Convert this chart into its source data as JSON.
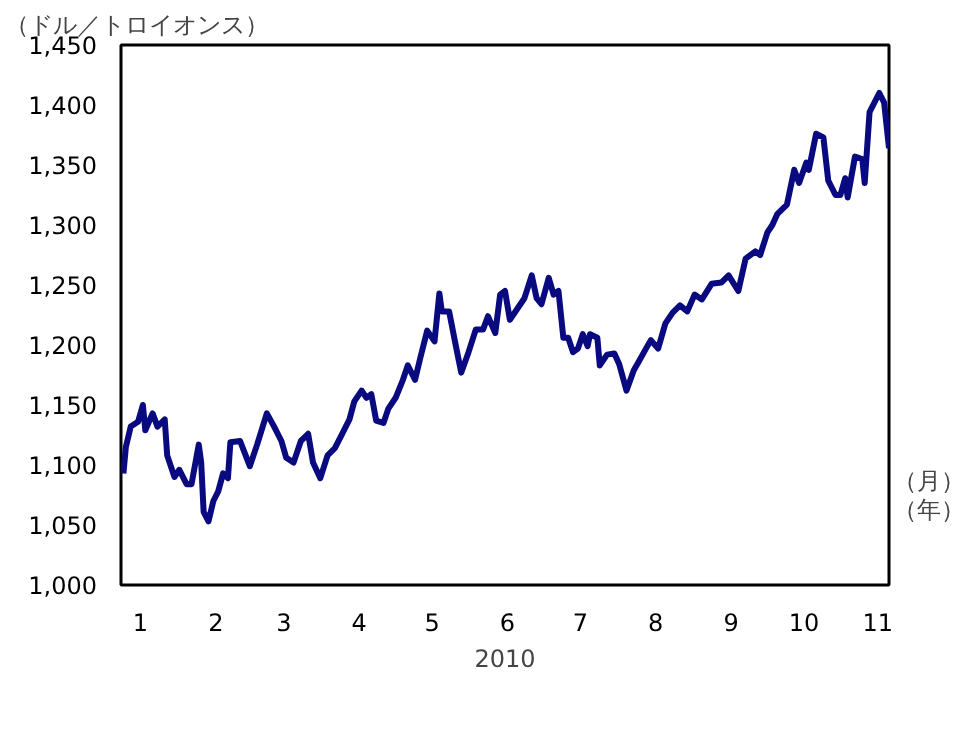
{
  "chart_data": {
    "type": "line",
    "ylabel": "（ドル／トロイオンス）",
    "xlabel": "2010",
    "annotations": [
      "（月）",
      "（年）"
    ],
    "xlim": [
      "2010-01-08",
      "2010-11-20"
    ],
    "xticks": [
      {
        "value": "2010-01-16",
        "label": "1"
      },
      {
        "value": "2010-02-16",
        "label": "2"
      },
      {
        "value": "2010-03-16",
        "label": "3"
      },
      {
        "value": "2010-04-16",
        "label": "4"
      },
      {
        "value": "2010-05-16",
        "label": "5"
      },
      {
        "value": "2010-06-16",
        "label": "6"
      },
      {
        "value": "2010-07-16",
        "label": "7"
      },
      {
        "value": "2010-08-16",
        "label": "8"
      },
      {
        "value": "2010-09-16",
        "label": "9"
      },
      {
        "value": "2010-10-16",
        "label": "10"
      },
      {
        "value": "2010-11-16",
        "label": "11"
      }
    ],
    "ylim": [
      1000,
      1450
    ],
    "yticks": [
      {
        "value": 1000,
        "label": "1,000"
      },
      {
        "value": 1050,
        "label": "1,050"
      },
      {
        "value": 1100,
        "label": "1,100"
      },
      {
        "value": 1150,
        "label": "1,150"
      },
      {
        "value": 1200,
        "label": "1,200"
      },
      {
        "value": 1250,
        "label": "1,250"
      },
      {
        "value": 1300,
        "label": "1,300"
      },
      {
        "value": 1350,
        "label": "1,350"
      },
      {
        "value": 1400,
        "label": "1,400"
      },
      {
        "value": 1450,
        "label": "1,450"
      }
    ],
    "grid": false,
    "x": [
      "2010-01-09",
      "2010-01-10",
      "2010-01-12",
      "2010-01-15",
      "2010-01-17",
      "2010-01-18",
      "2010-01-21",
      "2010-01-23",
      "2010-01-26",
      "2010-01-27",
      "2010-01-30",
      "2010-02-01",
      "2010-02-04",
      "2010-02-06",
      "2010-02-09",
      "2010-02-10",
      "2010-02-11",
      "2010-02-13",
      "2010-02-15",
      "2010-02-17",
      "2010-02-19",
      "2010-02-21",
      "2010-02-22",
      "2010-02-26",
      "2010-03-02",
      "2010-03-05",
      "2010-03-09",
      "2010-03-12",
      "2010-03-15",
      "2010-03-17",
      "2010-03-20",
      "2010-03-23",
      "2010-03-26",
      "2010-03-28",
      "2010-03-31",
      "2010-04-03",
      "2010-04-06",
      "2010-04-09",
      "2010-04-12",
      "2010-04-14",
      "2010-04-17",
      "2010-04-19",
      "2010-04-21",
      "2010-04-23",
      "2010-04-26",
      "2010-04-28",
      "2010-05-01",
      "2010-05-04",
      "2010-05-06",
      "2010-05-09",
      "2010-05-11",
      "2010-05-14",
      "2010-05-17",
      "2010-05-19",
      "2010-05-20",
      "2010-05-23",
      "2010-05-26",
      "2010-05-28",
      "2010-05-31",
      "2010-06-03",
      "2010-06-06",
      "2010-06-08",
      "2010-06-11",
      "2010-06-13",
      "2010-06-15",
      "2010-06-17",
      "2010-06-20",
      "2010-06-23",
      "2010-06-26",
      "2010-06-28",
      "2010-06-30",
      "2010-07-03",
      "2010-07-05",
      "2010-07-07",
      "2010-07-09",
      "2010-07-11",
      "2010-07-13",
      "2010-07-15",
      "2010-07-17",
      "2010-07-19",
      "2010-07-20",
      "2010-07-23",
      "2010-07-24",
      "2010-07-27",
      "2010-07-30",
      "2010-08-01",
      "2010-08-04",
      "2010-08-07",
      "2010-08-09",
      "2010-08-12",
      "2010-08-14",
      "2010-08-17",
      "2010-08-20",
      "2010-08-23",
      "2010-08-26",
      "2010-08-29",
      "2010-09-01",
      "2010-09-04",
      "2010-09-08",
      "2010-09-12",
      "2010-09-15",
      "2010-09-19",
      "2010-09-22",
      "2010-09-26",
      "2010-09-28",
      "2010-10-01",
      "2010-10-03",
      "2010-10-05",
      "2010-10-09",
      "2010-10-12",
      "2010-10-14",
      "2010-10-17",
      "2010-10-18",
      "2010-10-21",
      "2010-10-24",
      "2010-10-26",
      "2010-10-29",
      "2010-10-31",
      "2010-11-02",
      "2010-11-03",
      "2010-11-06",
      "2010-11-09",
      "2010-11-10",
      "2010-11-12",
      "2010-11-16",
      "2010-11-18",
      "2010-11-20"
    ],
    "series": [
      {
        "color": "#0a0a80",
        "values": [
          1093,
          1115,
          1132,
          1136,
          1150,
          1129,
          1143,
          1132,
          1138,
          1108,
          1090,
          1096,
          1084,
          1084,
          1117,
          1102,
          1061,
          1053,
          1070,
          1078,
          1093,
          1089,
          1119,
          1120,
          1099,
          1117,
          1143,
          1132,
          1120,
          1106,
          1102,
          1120,
          1126,
          1102,
          1089,
          1108,
          1114,
          1126,
          1138,
          1153,
          1162,
          1156,
          1159,
          1137,
          1135,
          1147,
          1156,
          1171,
          1183,
          1171,
          1188,
          1212,
          1203,
          1243,
          1228,
          1228,
          1197,
          1177,
          1194,
          1213,
          1213,
          1224,
          1210,
          1242,
          1245,
          1221,
          1230,
          1239,
          1258,
          1239,
          1234,
          1256,
          1242,
          1245,
          1206,
          1206,
          1194,
          1197,
          1209,
          1199,
          1209,
          1206,
          1183,
          1192,
          1193,
          1184,
          1162,
          1179,
          1186,
          1197,
          1204,
          1197,
          1218,
          1227,
          1233,
          1228,
          1242,
          1238,
          1251,
          1252,
          1258,
          1245,
          1272,
          1278,
          1275,
          1294,
          1300,
          1309,
          1317,
          1346,
          1335,
          1352,
          1346,
          1376,
          1373,
          1337,
          1325,
          1325,
          1339,
          1323,
          1357,
          1355,
          1335,
          1394,
          1410,
          1402,
          1364
        ]
      }
    ]
  }
}
